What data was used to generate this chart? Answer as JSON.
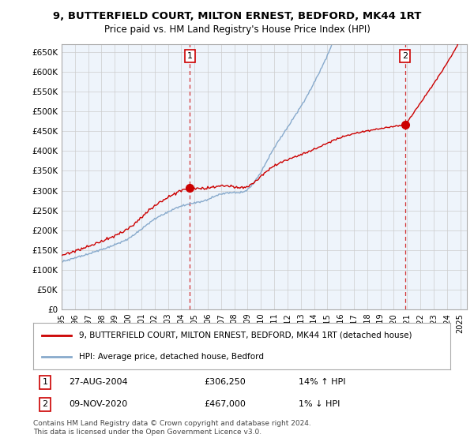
{
  "title": "9, BUTTERFIELD COURT, MILTON ERNEST, BEDFORD, MK44 1RT",
  "subtitle": "Price paid vs. HM Land Registry's House Price Index (HPI)",
  "ylabel_ticks": [
    "£0",
    "£50K",
    "£100K",
    "£150K",
    "£200K",
    "£250K",
    "£300K",
    "£350K",
    "£400K",
    "£450K",
    "£500K",
    "£550K",
    "£600K",
    "£650K"
  ],
  "ytick_vals": [
    0,
    50000,
    100000,
    150000,
    200000,
    250000,
    300000,
    350000,
    400000,
    450000,
    500000,
    550000,
    600000,
    650000
  ],
  "ylim": [
    0,
    670000
  ],
  "xlim_start": 1995.0,
  "xlim_end": 2025.5,
  "marker1_x": 2004.65,
  "marker1_y": 306250,
  "marker2_x": 2020.85,
  "marker2_y": 467000,
  "vline1_x": 2004.65,
  "vline2_x": 2020.85,
  "legend_line1": "9, BUTTERFIELD COURT, MILTON ERNEST, BEDFORD, MK44 1RT (detached house)",
  "legend_line2": "HPI: Average price, detached house, Bedford",
  "annotation1_num": "1",
  "annotation1_date": "27-AUG-2004",
  "annotation1_price": "£306,250",
  "annotation1_hpi": "14% ↑ HPI",
  "annotation2_num": "2",
  "annotation2_date": "09-NOV-2020",
  "annotation2_price": "£467,000",
  "annotation2_hpi": "1% ↓ HPI",
  "footer": "Contains HM Land Registry data © Crown copyright and database right 2024.\nThis data is licensed under the Open Government Licence v3.0.",
  "line1_color": "#cc0000",
  "line2_color": "#88aacc",
  "marker_color": "#cc0000",
  "vline_color": "#cc0000",
  "grid_color": "#cccccc",
  "plot_bg_color": "#eef4fb",
  "background_color": "#ffffff"
}
